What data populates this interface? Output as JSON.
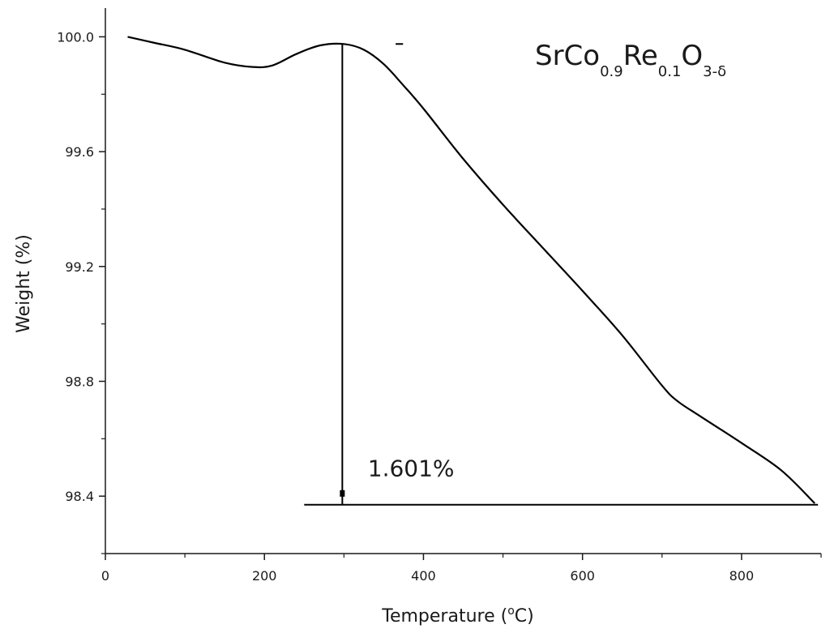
{
  "chart_data": {
    "type": "line",
    "xlabel": "Temperature (°C)",
    "xlabel_parts": {
      "prefix": "Temperature (",
      "sup": "o",
      "suffix": "C)"
    },
    "ylabel": "Weight (%)",
    "xlim": [
      0,
      900
    ],
    "ylim": [
      98.2,
      100.1
    ],
    "x_ticks": [
      0,
      200,
      400,
      600,
      800
    ],
    "x_tick_labels": [
      "0",
      "200",
      "400",
      "600",
      "800"
    ],
    "y_ticks": [
      98.4,
      98.8,
      99.2,
      99.6,
      100.0
    ],
    "y_tick_labels": [
      "98.4",
      "98.8",
      "99.2",
      "99.6",
      "100.0"
    ],
    "grid": false,
    "legend": {
      "position": "top-right",
      "parts": [
        {
          "text": "SrCo",
          "sub": false
        },
        {
          "text": "0.9",
          "sub": true
        },
        {
          "text": "Re",
          "sub": false
        },
        {
          "text": "0.1",
          "sub": true
        },
        {
          "text": "O",
          "sub": false
        },
        {
          "text": "3-δ",
          "sub": true
        }
      ]
    },
    "series": [
      {
        "x": [
          28,
          60,
          100,
          150,
          185,
          210,
          240,
          270,
          300,
          325,
          350,
          375,
          400,
          450,
          500,
          550,
          600,
          650,
          700,
          720,
          750,
          800,
          850,
          892
        ],
        "y": [
          100.0,
          99.98,
          99.955,
          99.91,
          99.895,
          99.9,
          99.94,
          99.97,
          99.975,
          99.955,
          99.905,
          99.83,
          99.75,
          99.575,
          99.415,
          99.265,
          99.115,
          98.96,
          98.785,
          98.73,
          98.675,
          98.585,
          98.49,
          98.375
        ]
      }
    ],
    "annotations": {
      "peak": {
        "x": 300,
        "y": 99.975,
        "x_start": 250,
        "x_end": 365
      },
      "baseline": {
        "y": 98.37,
        "x_start": 250,
        "x_end": 892
      },
      "drop_label": "1.601%",
      "drop_label_anchor": {
        "x": 330,
        "y": 98.47
      }
    },
    "colors": {
      "line": "#000000",
      "axis": "#1a1a1a"
    }
  }
}
